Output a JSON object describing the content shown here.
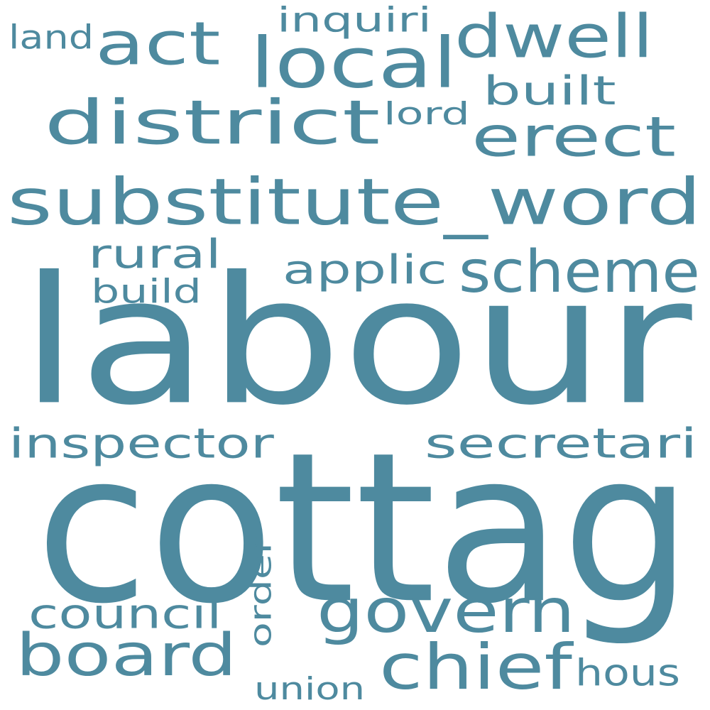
{
  "color": "#4e8a9f",
  "background": "#ffffff",
  "words": [
    {
      "text": "labour",
      "name": "word-labour"
    },
    {
      "text": "cottag",
      "name": "word-cottag"
    },
    {
      "text": "substitute_word",
      "name": "word-substitute-word"
    },
    {
      "text": "district",
      "name": "word-district"
    },
    {
      "text": "local",
      "name": "word-local"
    },
    {
      "text": "act",
      "name": "word-act"
    },
    {
      "text": "dwell",
      "name": "word-dwell"
    },
    {
      "text": "erect",
      "name": "word-erect"
    },
    {
      "text": "scheme",
      "name": "word-scheme"
    },
    {
      "text": "govern",
      "name": "word-govern"
    },
    {
      "text": "board",
      "name": "word-board"
    },
    {
      "text": "chief",
      "name": "word-chief"
    },
    {
      "text": "secretari",
      "name": "word-secretari"
    },
    {
      "text": "inspector",
      "name": "word-inspector"
    },
    {
      "text": "applic",
      "name": "word-applic"
    },
    {
      "text": "council",
      "name": "word-council"
    },
    {
      "text": "built",
      "name": "word-built"
    },
    {
      "text": "rural",
      "name": "word-rural"
    },
    {
      "text": "inquiri",
      "name": "word-inquiri"
    },
    {
      "text": "hous",
      "name": "word-hous"
    },
    {
      "text": "order",
      "name": "word-order"
    },
    {
      "text": "union",
      "name": "word-union"
    },
    {
      "text": "land",
      "name": "word-land"
    },
    {
      "text": "lord",
      "name": "word-lord"
    },
    {
      "text": "build",
      "name": "word-build"
    }
  ]
}
